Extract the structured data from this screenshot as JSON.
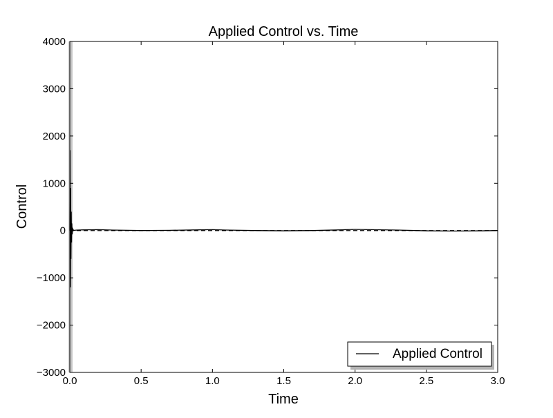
{
  "chart_data": {
    "type": "line",
    "title": "Applied Control vs. Time",
    "xlabel": "Time",
    "ylabel": "Control",
    "xlim": [
      0,
      3.0
    ],
    "ylim": [
      -3000,
      4000
    ],
    "xticks": [
      0.0,
      0.5,
      1.0,
      1.5,
      2.0,
      2.5,
      3.0
    ],
    "xtick_labels": [
      "0.0",
      "0.5",
      "1.0",
      "1.5",
      "2.0",
      "2.5",
      "3.0"
    ],
    "yticks": [
      -3000,
      -2000,
      -1000,
      0,
      1000,
      2000,
      3000,
      4000
    ],
    "ytick_labels": [
      "−3000",
      "−2000",
      "−1000",
      "0",
      "1000",
      "2000",
      "3000",
      "4000"
    ],
    "grid": false,
    "legend_position": "lower-right",
    "series": [
      {
        "name": "Applied Control",
        "color": "#000000",
        "x": [
          0.0,
          0.002,
          0.004,
          0.006,
          0.008,
          0.01,
          0.012,
          0.014,
          0.017,
          0.02,
          0.025,
          0.03,
          0.05,
          0.1,
          0.2,
          0.3,
          0.5,
          0.7,
          0.9,
          1.0,
          1.1,
          1.3,
          1.5,
          1.7,
          1.9,
          2.0,
          2.1,
          2.3,
          2.5,
          2.7,
          2.9,
          3.0
        ],
        "y": [
          0,
          1700,
          -1200,
          900,
          -600,
          400,
          -250,
          150,
          -80,
          40,
          10,
          5,
          10,
          15,
          20,
          10,
          0,
          5,
          15,
          20,
          10,
          0,
          -5,
          0,
          15,
          25,
          20,
          10,
          -5,
          -10,
          -5,
          0
        ]
      }
    ],
    "reference_lines": [
      {
        "y": 0,
        "style": "dashed",
        "color": "#000000"
      }
    ]
  }
}
